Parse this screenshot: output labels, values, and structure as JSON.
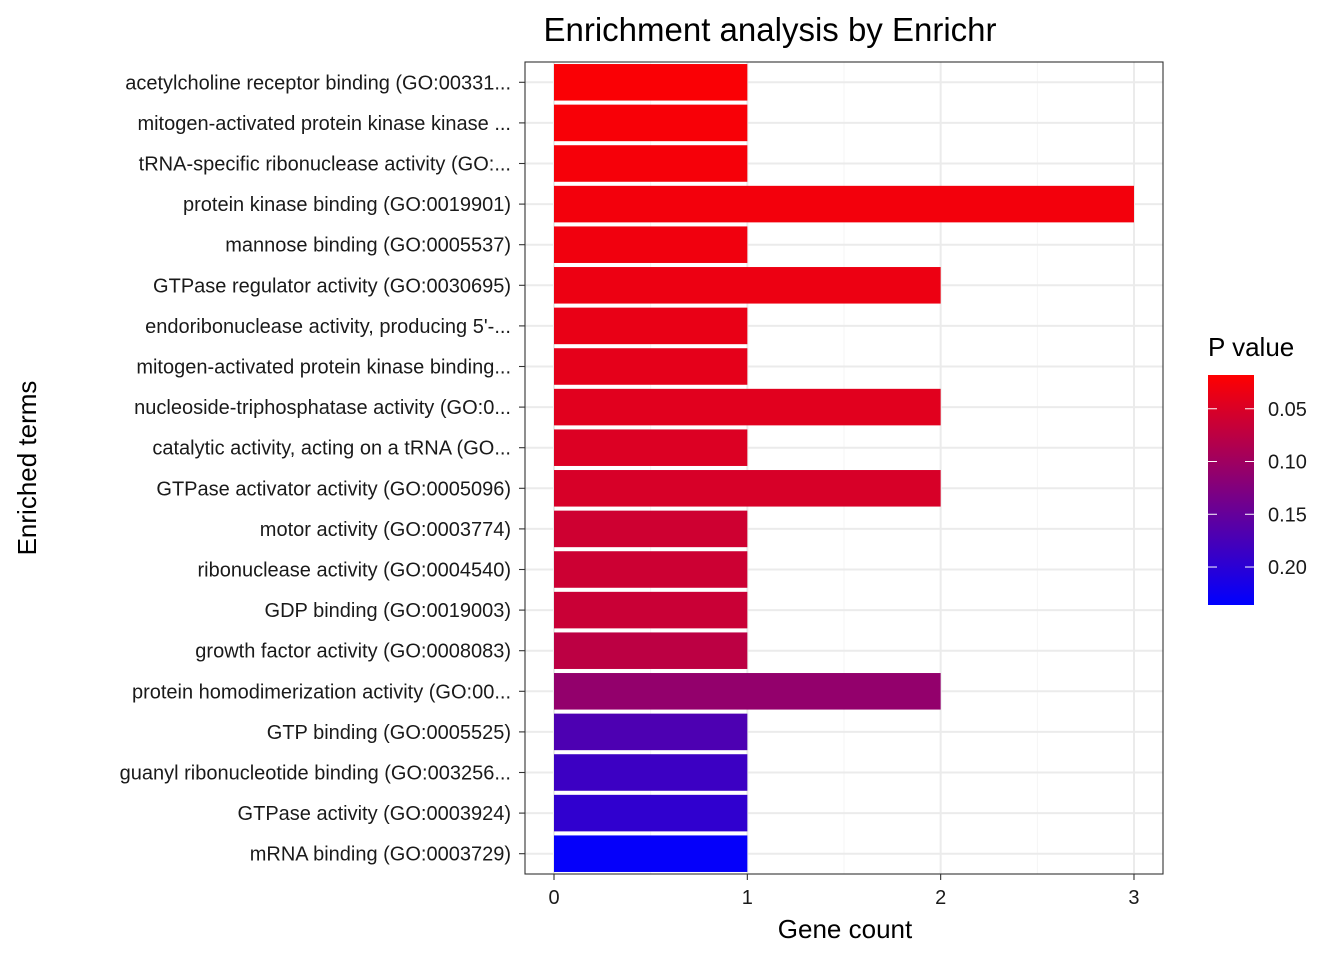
{
  "chart_data": {
    "type": "bar",
    "orientation": "horizontal",
    "title": "Enrichment analysis by Enrichr",
    "xlabel": "Gene count",
    "ylabel": "Enriched terms",
    "xlim": [
      -0.15,
      3.15
    ],
    "xticks": [
      0,
      1,
      2,
      3
    ],
    "grid": true,
    "legend_position": "right",
    "categories": [
      "acetylcholine receptor binding (GO:00331...",
      "mitogen-activated protein kinase kinase ...",
      "tRNA-specific ribonuclease activity (GO:...",
      "protein kinase binding (GO:0019901)",
      "mannose binding (GO:0005537)",
      "GTPase regulator activity (GO:0030695)",
      "endoribonuclease activity, producing 5'-...",
      "mitogen-activated protein kinase binding...",
      "nucleoside-triphosphatase activity (GO:0...",
      "catalytic activity, acting on a tRNA (GO...",
      "GTPase activator activity (GO:0005096)",
      "motor activity (GO:0003774)",
      "ribonuclease activity (GO:0004540)",
      "GDP binding (GO:0019003)",
      "growth factor activity (GO:0008083)",
      "protein homodimerization activity (GO:00...",
      "GTP binding (GO:0005525)",
      "guanyl ribonucleotide binding (GO:003256...",
      "GTPase activity (GO:0003924)",
      "mRNA binding (GO:0003729)"
    ],
    "values": [
      1,
      1,
      1,
      3,
      1,
      2,
      1,
      1,
      2,
      1,
      2,
      1,
      1,
      1,
      1,
      2,
      1,
      1,
      1,
      1
    ],
    "p_values": [
      0.022,
      0.024,
      0.026,
      0.028,
      0.03,
      0.033,
      0.037,
      0.04,
      0.044,
      0.048,
      0.052,
      0.06,
      0.062,
      0.064,
      0.075,
      0.11,
      0.17,
      0.185,
      0.195,
      0.232
    ],
    "color_legend": {
      "title": "P value",
      "ticks": [
        0.05,
        0.1,
        0.15,
        0.2
      ],
      "tick_labels": [
        "0.05",
        "0.10",
        "0.15",
        "0.20"
      ],
      "range": [
        0.018,
        0.236
      ],
      "low_color": "#FF0000",
      "high_color": "#0000FF"
    },
    "colors": {
      "panel_border": "#333333",
      "grid_major": "#EBEBEB",
      "grid_minor": "#F5F5F5"
    }
  }
}
